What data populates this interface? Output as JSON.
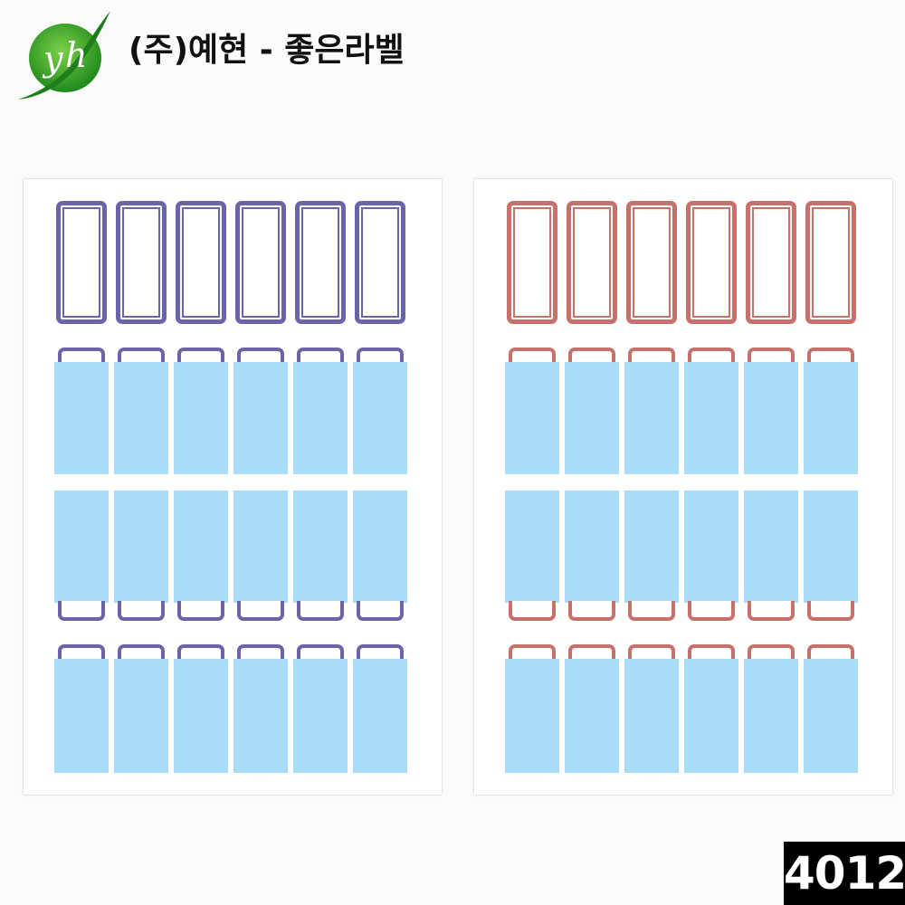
{
  "header": {
    "brand_text": "(주)예현 - 좋은라벨"
  },
  "product": {
    "code": "4012",
    "label_sheets": [
      {
        "name": "blue-frame-sheet",
        "frame_color": "#6b64a8",
        "label_fill": "#a8dcf8"
      },
      {
        "name": "red-frame-sheet",
        "frame_color": "#c8706a",
        "label_fill": "#a8dcf8"
      }
    ]
  },
  "icons": {
    "logo": "yh-leaf-logo-icon"
  }
}
